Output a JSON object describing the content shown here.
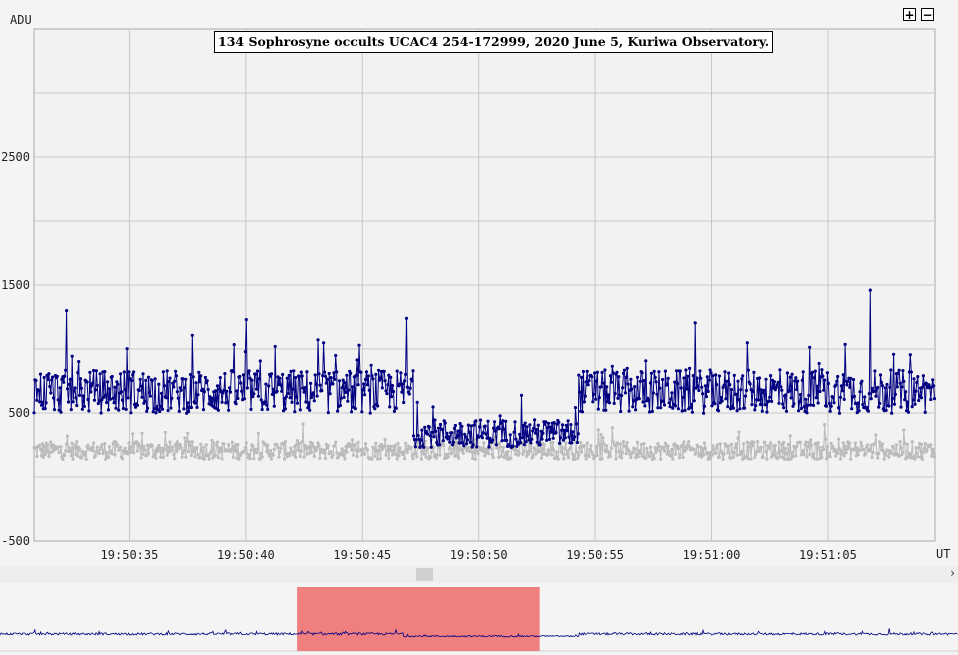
{
  "chart_data": {
    "type": "line",
    "title": "134 Sophrosyne occults UCAC4 254-172999, 2020 June 5, Kuriwa Observatory.",
    "ylabel": "ADU",
    "xlabel": "UT",
    "ylim": [
      -500,
      3500
    ],
    "xlim": [
      "19:50:30.9",
      "19:51:09.6"
    ],
    "y_ticks": [
      "-500",
      "500",
      "1500",
      "2500"
    ],
    "x_ticks": [
      "19:50:35",
      "19:50:40",
      "19:50:45",
      "19:50:50",
      "19:50:55",
      "19:51:00",
      "19:51:05"
    ],
    "grid": true,
    "series": [
      {
        "color": "#000080",
        "segments": [
          {
            "t_start": "19:50:30.9",
            "t_end": "19:50:47.2",
            "level": 650,
            "spread": 170
          },
          {
            "t_start": "19:50:47.2",
            "t_end": "19:50:54.3",
            "level": 330,
            "spread": 110
          },
          {
            "t_start": "19:50:54.3",
            "t_end": "19:51:09.6",
            "level": 650,
            "spread": 170
          }
        ],
        "spikes": [
          {
            "t": "19:50:32.3",
            "value": 1300
          },
          {
            "t": "19:50:40.0",
            "value": 1230
          },
          {
            "t": "19:50:46.9",
            "value": 1240
          },
          {
            "t": "19:51:06.8",
            "value": 1460
          }
        ]
      },
      {
        "color": "#bbbbbb",
        "segments": [
          {
            "t_start": "19:50:30.9",
            "t_end": "19:51:09.6",
            "level": 200,
            "spread": 70
          }
        ]
      }
    ]
  },
  "controls": {
    "zoom_in": "+",
    "zoom_out": "−",
    "scroll_right": "›"
  },
  "navigator": {
    "selection_start": "19:50:42.9",
    "selection_end": "19:50:52.7",
    "selection_color": "#f08080"
  }
}
